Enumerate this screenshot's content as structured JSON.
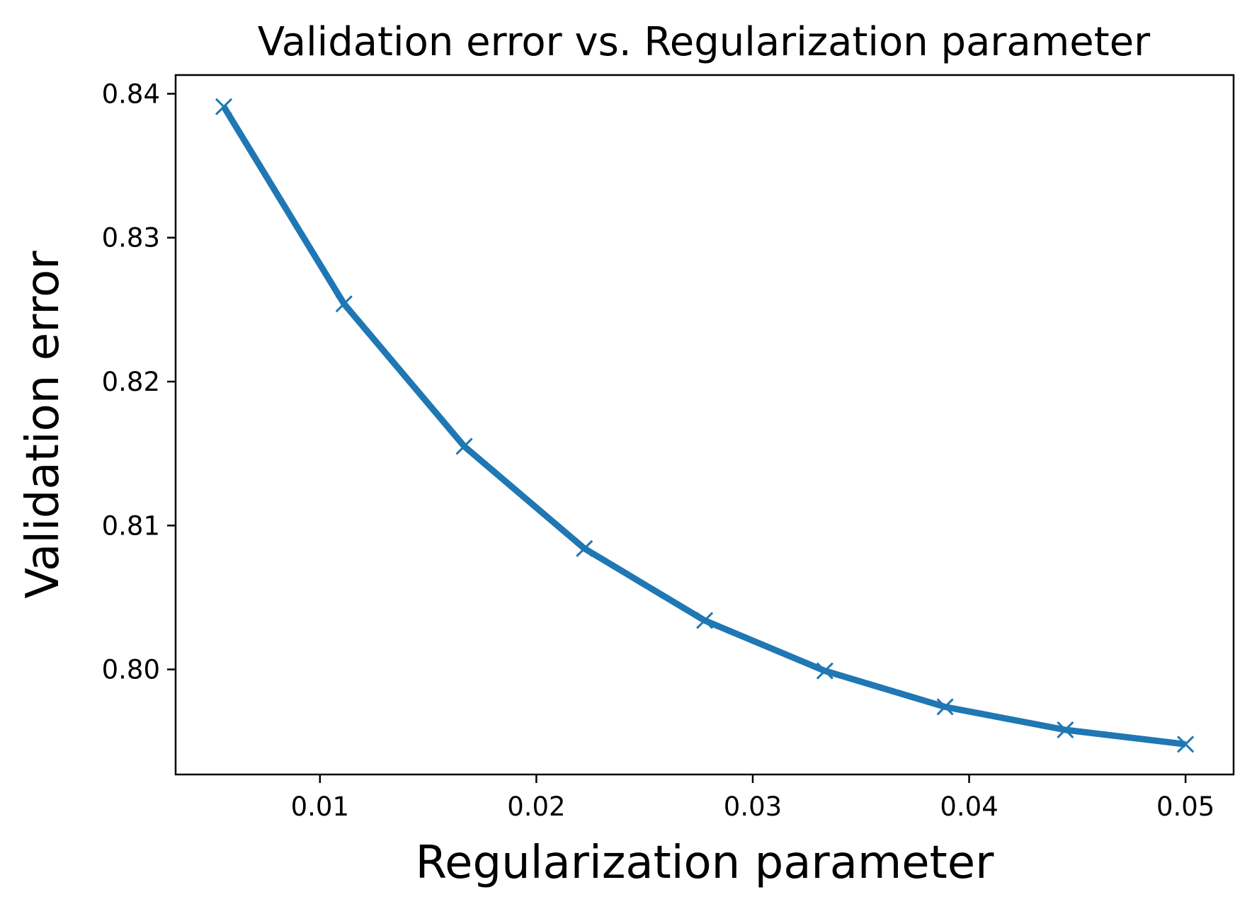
{
  "chart_data": {
    "type": "line",
    "title": "Validation error vs. Regularization parameter",
    "xlabel": "Regularization parameter",
    "ylabel": "Validation error",
    "x": [
      0.005556,
      0.011111,
      0.016667,
      0.022222,
      0.027778,
      0.033333,
      0.038889,
      0.044444,
      0.05
    ],
    "series": [
      {
        "values": [
          0.8391,
          0.8254,
          0.8155,
          0.8084,
          0.8034,
          0.7999,
          0.7974,
          0.7958,
          0.7948
        ],
        "color": "#1f77b4",
        "marker": "x"
      }
    ],
    "xlim": [
      0.00333,
      0.05222
    ],
    "ylim": [
      0.7927,
      0.8413
    ],
    "xticks": [
      0.01,
      0.02,
      0.03,
      0.04,
      0.05
    ],
    "xtick_labels": [
      "0.01",
      "0.02",
      "0.03",
      "0.04",
      "0.05"
    ],
    "yticks": [
      0.8,
      0.81,
      0.82,
      0.83,
      0.84
    ],
    "ytick_labels": [
      "0.80",
      "0.81",
      "0.82",
      "0.83",
      "0.84"
    ],
    "grid": false
  }
}
